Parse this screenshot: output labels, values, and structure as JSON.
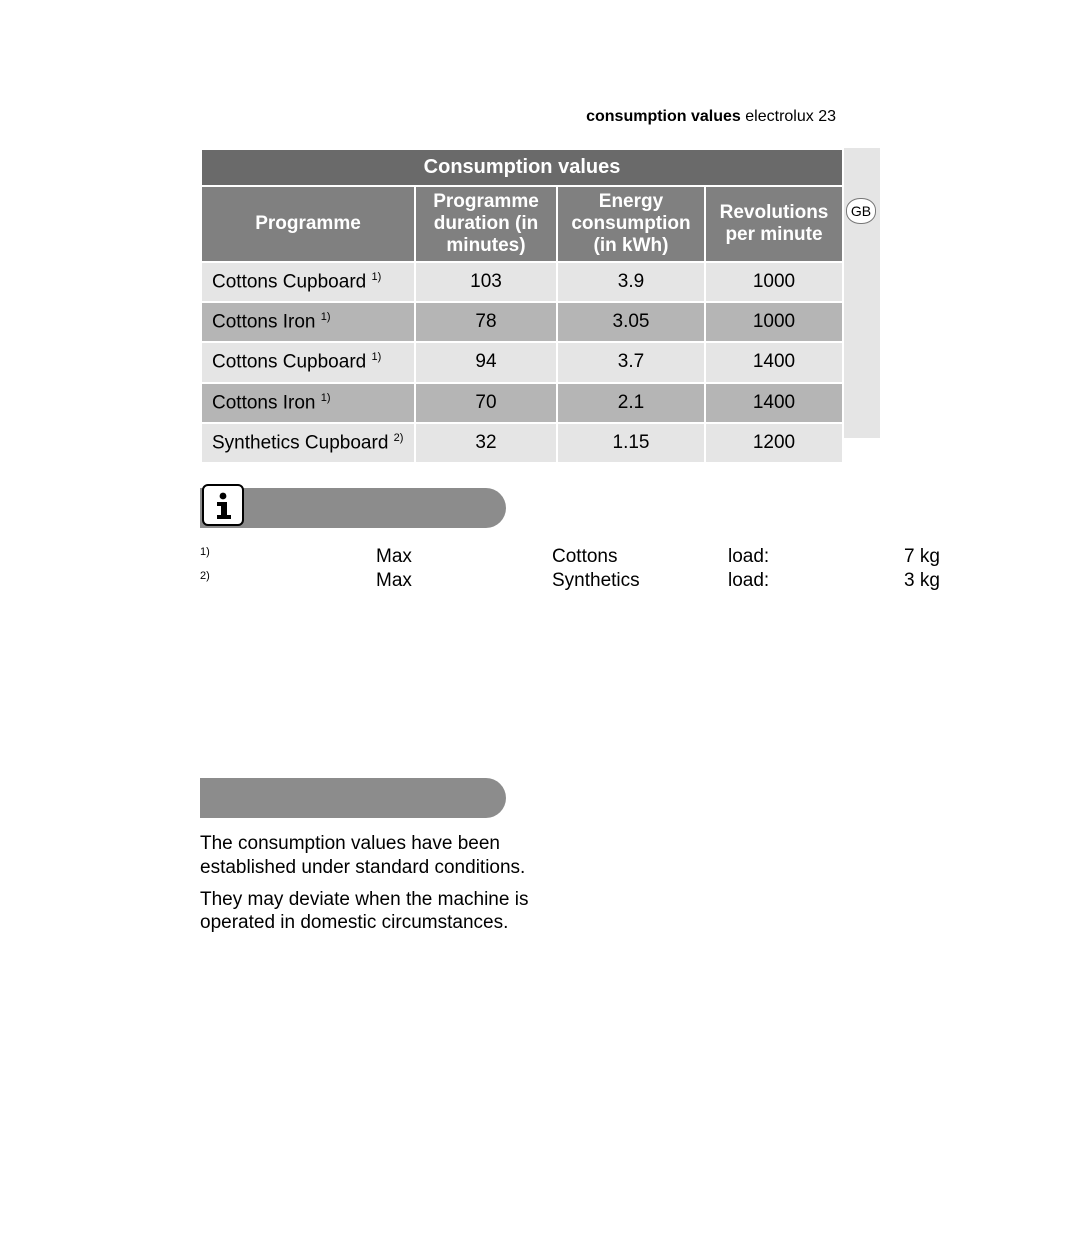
{
  "header": {
    "section": "consumption values",
    "brand": "electrolux",
    "page": "23"
  },
  "gb_label": "GB",
  "table": {
    "title": "Consumption values",
    "cols": [
      "Programme",
      "Programme duration (in minutes)",
      "Energy consumption (in kWh)",
      "Revolutions per minute"
    ],
    "rows": [
      {
        "prog": "Cottons Cupboard",
        "note": "1)",
        "dur": "103",
        "kwh": "3.9",
        "rpm": "1000",
        "shade": "light"
      },
      {
        "prog": "Cottons Iron",
        "note": "1)",
        "dur": "78",
        "kwh": "3.05",
        "rpm": "1000",
        "shade": "dark"
      },
      {
        "prog": "Cottons Cupboard",
        "note": "1)",
        "dur": "94",
        "kwh": "3.7",
        "rpm": "1400",
        "shade": "light"
      },
      {
        "prog": "Cottons Iron",
        "note": "1)",
        "dur": "70",
        "kwh": "2.1",
        "rpm": "1400",
        "shade": "dark"
      },
      {
        "prog": "Synthetics Cupboard",
        "note": "2)",
        "dur": "32",
        "kwh": "1.15",
        "rpm": "1200",
        "shade": "light"
      }
    ]
  },
  "footnotes": [
    {
      "sup": "1)",
      "label1": "Max",
      "label2": "Cottons",
      "label3": "load:",
      "val": "7 kg"
    },
    {
      "sup": "2)",
      "label1": "Max",
      "label2": "Synthetics",
      "label3": "load:",
      "val": "3 kg"
    }
  ],
  "body": {
    "p1": "The consumption values have been established under standard conditions.",
    "p2": "They may deviate when the machine is operated in domestic circumstances."
  },
  "colors": {
    "title_bg": "#6a6a6a",
    "head_bg": "#808080",
    "row_light": "#e5e5e5",
    "row_dark": "#b5b5b5",
    "bar_bg": "#8c8c8c"
  }
}
